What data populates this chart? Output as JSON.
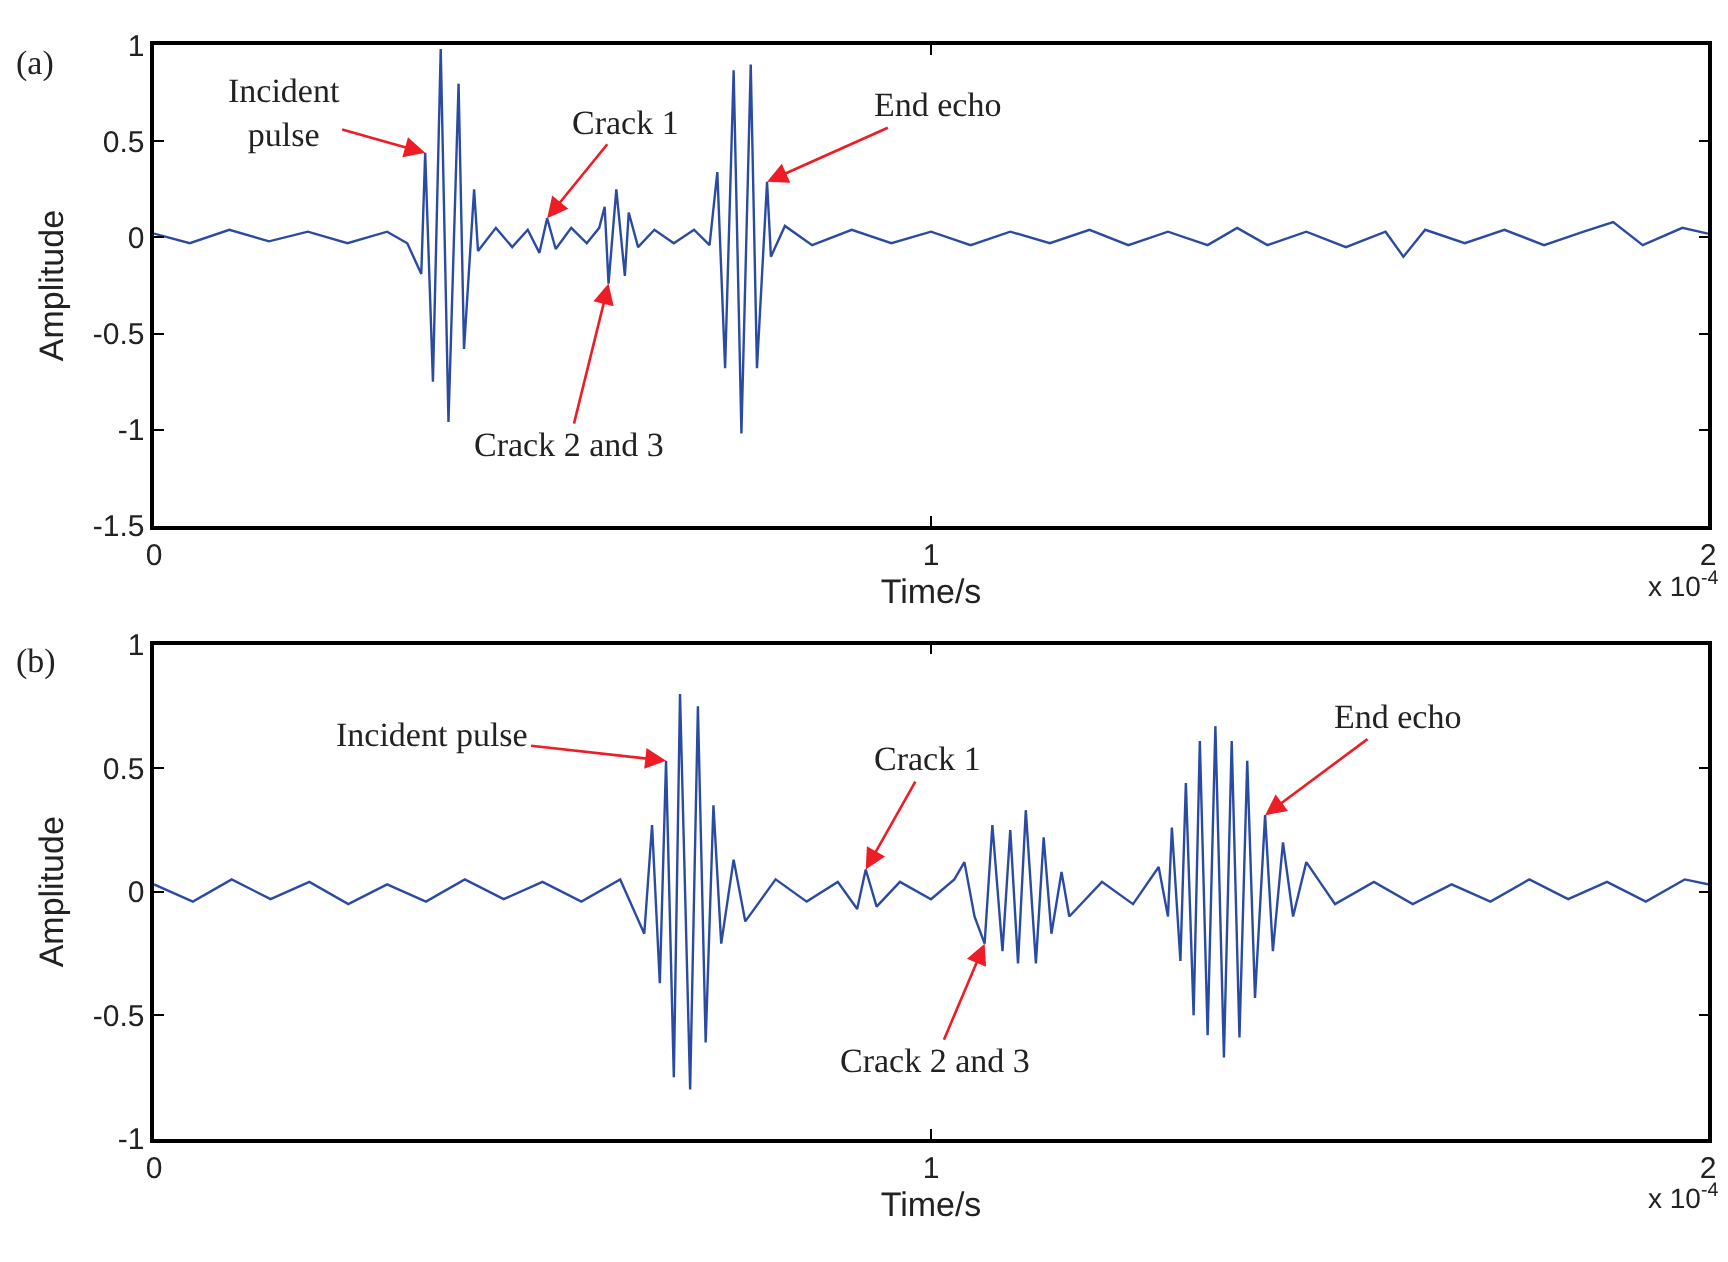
{
  "chart_data": [
    {
      "type": "line",
      "xlabel": "Time/s",
      "ylabel": "Amplitude",
      "xlim": [
        0,
        2
      ],
      "ylim": [
        -1.5,
        1
      ],
      "xticks": [
        0,
        1,
        2
      ],
      "yticks": [
        -1.5,
        -1,
        -0.5,
        0,
        0.5,
        1
      ],
      "marker": "none",
      "line_style": "solid",
      "series": [
        {
          "color": "#2b4ba3",
          "x": [
            0,
            0.046,
            0.097,
            0.148,
            0.198,
            0.249,
            0.3,
            0.326,
            0.344,
            0.349,
            0.359,
            0.369,
            0.379,
            0.392,
            0.399,
            0.412,
            0.417,
            0.44,
            0.461,
            0.481,
            0.496,
            0.506,
            0.517,
            0.537,
            0.557,
            0.573,
            0.58,
            0.585,
            0.595,
            0.606,
            0.611,
            0.623,
            0.644,
            0.669,
            0.695,
            0.715,
            0.725,
            0.735,
            0.746,
            0.756,
            0.768,
            0.776,
            0.789,
            0.794,
            0.812,
            0.847,
            0.898,
            0.949,
            1.0,
            1.051,
            1.102,
            1.153,
            1.204,
            1.254,
            1.305,
            1.356,
            1.394,
            1.433,
            1.483,
            1.534,
            1.585,
            1.608,
            1.636,
            1.687,
            1.738,
            1.789,
            1.84,
            1.878,
            1.916,
            1.967,
            2.0
          ],
          "values": [
            0.02,
            -0.03,
            0.04,
            -0.02,
            0.03,
            -0.03,
            0.03,
            -0.03,
            -0.19,
            0.44,
            -0.75,
            0.98,
            -0.96,
            0.8,
            -0.58,
            0.25,
            -0.07,
            0.05,
            -0.05,
            0.04,
            -0.08,
            0.1,
            -0.06,
            0.05,
            -0.03,
            0.05,
            0.16,
            -0.24,
            0.25,
            -0.2,
            0.13,
            -0.05,
            0.04,
            -0.03,
            0.04,
            -0.04,
            0.34,
            -0.68,
            0.87,
            -1.02,
            0.9,
            -0.68,
            0.29,
            -0.1,
            0.06,
            -0.04,
            0.04,
            -0.03,
            0.03,
            -0.04,
            0.03,
            -0.03,
            0.04,
            -0.04,
            0.03,
            -0.04,
            0.05,
            -0.04,
            0.03,
            -0.05,
            0.03,
            -0.1,
            0.04,
            -0.03,
            0.04,
            -0.04,
            0.03,
            0.08,
            -0.04,
            0.05,
            0.02
          ]
        }
      ],
      "annotations": [
        "(a)",
        "x 10$^{-4}$",
        {
          "text": "Incident\npulse",
          "x": 0.349,
          "y": 0.44
        },
        {
          "text": "Crack 1",
          "x": 0.506,
          "y": 0.1
        },
        {
          "text": "Crack 2 and 3",
          "x": 0.585,
          "y": -0.24
        },
        {
          "text": "End echo",
          "x": 0.789,
          "y": 0.29
        }
      ]
    },
    {
      "type": "line",
      "xlabel": "Time/s",
      "ylabel": "Amplitude",
      "xlim": [
        0,
        2
      ],
      "ylim": [
        -1,
        1
      ],
      "xticks": [
        0,
        1,
        2
      ],
      "yticks": [
        -1,
        -0.5,
        0,
        0.5,
        1
      ],
      "marker": "none",
      "line_style": "solid",
      "series": [
        {
          "color": "#2b4ba3",
          "x": [
            0,
            0.05,
            0.1,
            0.15,
            0.2,
            0.25,
            0.3,
            0.35,
            0.4,
            0.45,
            0.5,
            0.55,
            0.6,
            0.631,
            0.641,
            0.651,
            0.659,
            0.669,
            0.677,
            0.69,
            0.7,
            0.71,
            0.72,
            0.73,
            0.746,
            0.761,
            0.8,
            0.84,
            0.88,
            0.905,
            0.916,
            0.93,
            0.96,
            1.0,
            1.03,
            1.043,
            1.056,
            1.069,
            1.079,
            1.092,
            1.102,
            1.112,
            1.122,
            1.135,
            1.145,
            1.155,
            1.168,
            1.178,
            1.22,
            1.26,
            1.293,
            1.305,
            1.31,
            1.321,
            1.328,
            1.338,
            1.346,
            1.356,
            1.366,
            1.377,
            1.387,
            1.397,
            1.407,
            1.417,
            1.43,
            1.44,
            1.453,
            1.466,
            1.483,
            1.52,
            1.57,
            1.62,
            1.67,
            1.72,
            1.77,
            1.82,
            1.87,
            1.92,
            1.97,
            2.0
          ],
          "values": [
            0.03,
            -0.04,
            0.05,
            -0.03,
            0.04,
            -0.05,
            0.03,
            -0.04,
            0.05,
            -0.03,
            0.04,
            -0.04,
            0.05,
            -0.17,
            0.27,
            -0.37,
            0.53,
            -0.75,
            0.8,
            -0.8,
            0.75,
            -0.61,
            0.35,
            -0.21,
            0.13,
            -0.12,
            0.05,
            -0.04,
            0.04,
            -0.07,
            0.09,
            -0.06,
            0.04,
            -0.03,
            0.05,
            0.12,
            -0.1,
            -0.21,
            0.27,
            -0.24,
            0.25,
            -0.29,
            0.33,
            -0.29,
            0.22,
            -0.17,
            0.08,
            -0.1,
            0.04,
            -0.05,
            0.1,
            -0.1,
            0.26,
            -0.28,
            0.44,
            -0.5,
            0.61,
            -0.58,
            0.67,
            -0.67,
            0.61,
            -0.59,
            0.53,
            -0.43,
            0.31,
            -0.24,
            0.2,
            -0.1,
            0.12,
            -0.05,
            0.04,
            -0.05,
            0.03,
            -0.04,
            0.05,
            -0.03,
            0.04,
            -0.04,
            0.05,
            0.03
          ]
        }
      ],
      "annotations": [
        "(b)",
        "x 10$^{-4}$",
        {
          "text": "Incident pulse",
          "x": 0.659,
          "y": 0.53
        },
        {
          "text": "Crack 1",
          "x": 0.916,
          "y": 0.09
        },
        {
          "text": "Crack 2 and 3",
          "x": 1.069,
          "y": -0.21
        },
        {
          "text": "End echo",
          "x": 1.43,
          "y": 0.31
        }
      ]
    }
  ]
}
